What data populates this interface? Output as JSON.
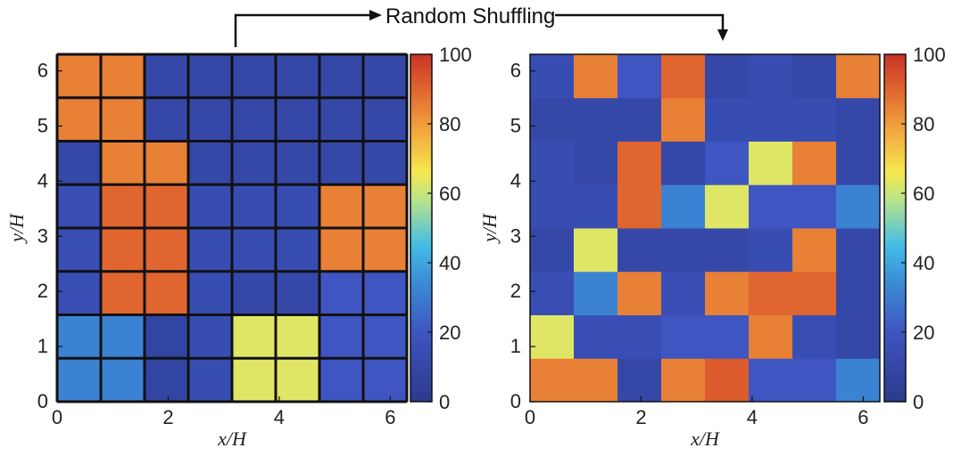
{
  "annotation": "Random Shuffling",
  "colorbar": {
    "ticks": [
      0,
      20,
      40,
      60,
      80,
      100
    ],
    "range": [
      0,
      100
    ],
    "colormap": "parula-like: dark blue → blue → cyan → yellow → orange → red"
  },
  "chart_data": [
    {
      "type": "heatmap",
      "xlabel": "x/H",
      "ylabel": "y/H",
      "xlim": [
        0,
        6.3
      ],
      "ylim": [
        0,
        6.3
      ],
      "xticks": [
        0,
        2,
        4,
        6
      ],
      "yticks": [
        0,
        1,
        2,
        3,
        4,
        5,
        6
      ],
      "grid": "thick black block outlines",
      "cells_x": [
        0.0,
        0.7875,
        1.575,
        2.3625,
        3.15,
        3.9375,
        4.725,
        5.5125,
        6.3
      ],
      "cells_y": [
        0.0,
        0.7875,
        1.575,
        2.3625,
        3.15,
        3.9375,
        4.725,
        5.5125,
        6.3
      ],
      "values": [
        [
          32,
          32,
          8,
          14,
          63,
          63,
          20,
          20
        ],
        [
          32,
          32,
          8,
          14,
          63,
          63,
          20,
          20
        ],
        [
          15,
          90,
          90,
          14,
          10,
          10,
          20,
          20
        ],
        [
          15,
          90,
          90,
          14,
          14,
          14,
          85,
          85
        ],
        [
          15,
          90,
          90,
          14,
          14,
          14,
          85,
          85
        ],
        [
          10,
          85,
          85,
          10,
          10,
          10,
          10,
          10
        ],
        [
          85,
          85,
          10,
          10,
          10,
          10,
          10,
          10
        ],
        [
          85,
          85,
          10,
          10,
          10,
          10,
          10,
          10
        ]
      ]
    },
    {
      "type": "heatmap",
      "xlabel": "x/H",
      "ylabel": "y/H",
      "xlim": [
        0,
        6.3
      ],
      "ylim": [
        0,
        6.3
      ],
      "xticks": [
        0,
        2,
        4,
        6
      ],
      "yticks": [
        0,
        1,
        2,
        3,
        4,
        5,
        6
      ],
      "grid": "none",
      "cells_x": [
        0.0,
        0.7875,
        1.575,
        2.3625,
        3.15,
        3.9375,
        4.725,
        5.5125,
        6.3
      ],
      "cells_y": [
        0.0,
        0.7875,
        1.575,
        2.3625,
        3.15,
        3.9375,
        4.725,
        5.5125,
        6.3
      ],
      "values": [
        [
          85,
          85,
          10,
          85,
          92,
          20,
          20,
          32
        ],
        [
          63,
          15,
          15,
          20,
          20,
          85,
          15,
          10
        ],
        [
          15,
          32,
          85,
          15,
          85,
          90,
          90,
          10
        ],
        [
          10,
          63,
          10,
          10,
          10,
          14,
          85,
          10
        ],
        [
          14,
          14,
          90,
          32,
          63,
          20,
          20,
          32
        ],
        [
          14,
          10,
          90,
          10,
          20,
          63,
          85,
          10
        ],
        [
          10,
          10,
          10,
          85,
          14,
          14,
          14,
          10
        ],
        [
          14,
          85,
          20,
          90,
          10,
          14,
          10,
          85
        ]
      ]
    }
  ]
}
